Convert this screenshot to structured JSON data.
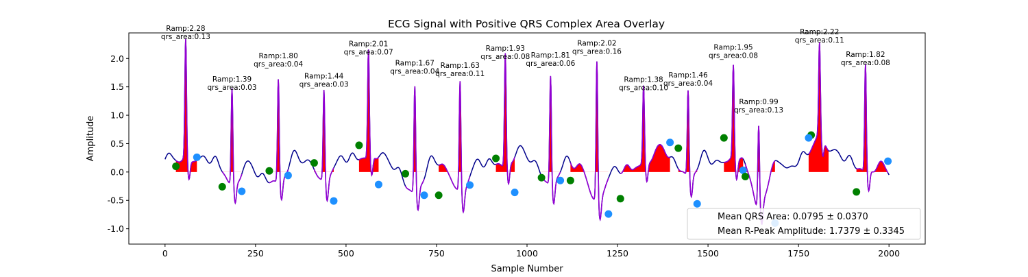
{
  "chart_data": {
    "type": "line",
    "title": "ECG Signal with Positive QRS Complex Area Overlay",
    "xlabel": "Sample Number",
    "ylabel": "Amplitude",
    "xlim": [
      -100,
      2100
    ],
    "ylim": [
      -1.27,
      2.45
    ],
    "x_ticks": [
      0,
      250,
      500,
      750,
      1000,
      1250,
      1500,
      1750,
      2000
    ],
    "y_ticks": [
      -1.0,
      -0.5,
      0.0,
      0.5,
      1.0,
      1.5,
      2.0
    ],
    "grid": false,
    "colors": {
      "signal": "#00008b",
      "qrs_signal": "#9400d3",
      "qrs_area": "#ff0000",
      "onset_marker": "#008000",
      "offset_marker": "#1e90ff"
    },
    "r_peaks": [
      {
        "x": 57,
        "amp": 2.28,
        "label1": "Ramp:2.28",
        "label2": "qrs_area:0.13",
        "onset": [
          30,
          0.1
        ],
        "offset": [
          88,
          0.26
        ]
      },
      {
        "x": 185,
        "amp": 1.39,
        "label1": "Ramp:1.39",
        "label2": "qrs_area:0.03",
        "onset": [
          158,
          -0.26
        ],
        "offset": [
          212,
          -0.34
        ]
      },
      {
        "x": 313,
        "amp": 1.8,
        "label1": "Ramp:1.80",
        "label2": "qrs_area:0.04",
        "onset": [
          288,
          0.02
        ],
        "offset": [
          340,
          -0.06
        ]
      },
      {
        "x": 439,
        "amp": 1.44,
        "label1": "Ramp:1.44",
        "label2": "qrs_area:0.03",
        "onset": [
          412,
          0.16
        ],
        "offset": [
          466,
          -0.51
        ]
      },
      {
        "x": 562,
        "amp": 2.01,
        "label1": "Ramp:2.01",
        "label2": "qrs_area:0.07",
        "onset": [
          536,
          0.47
        ],
        "offset": [
          590,
          -0.22
        ]
      },
      {
        "x": 690,
        "amp": 1.67,
        "label1": "Ramp:1.67",
        "label2": "qrs_area:0.04",
        "onset": [
          664,
          -0.03
        ],
        "offset": [
          716,
          -0.41
        ]
      },
      {
        "x": 815,
        "amp": 1.63,
        "label1": "Ramp:1.63",
        "label2": "qrs_area:0.11",
        "onset": [
          756,
          -0.41
        ],
        "offset": [
          842,
          -0.23
        ]
      },
      {
        "x": 940,
        "amp": 1.93,
        "label1": "Ramp:1.93",
        "label2": "qrs_area:0.08",
        "onset": [
          914,
          0.24
        ],
        "offset": [
          966,
          -0.36
        ]
      },
      {
        "x": 1065,
        "amp": 1.81,
        "label1": "Ramp:1.81",
        "label2": "qrs_area:0.06",
        "onset": [
          1040,
          -0.1
        ],
        "offset": [
          1092,
          -0.15
        ]
      },
      {
        "x": 1193,
        "amp": 2.02,
        "label1": "Ramp:2.02",
        "label2": "qrs_area:0.16",
        "onset": [
          1120,
          -0.15
        ],
        "offset": [
          1225,
          -0.74
        ]
      },
      {
        "x": 1322,
        "amp": 1.38,
        "label1": "Ramp:1.38",
        "label2": "qrs_area:0.10",
        "onset": [
          1258,
          -0.47
        ],
        "offset": [
          1395,
          0.52
        ]
      },
      {
        "x": 1445,
        "amp": 1.46,
        "label1": "Ramp:1.46",
        "label2": "qrs_area:0.04",
        "onset": [
          1418,
          0.42
        ],
        "offset": [
          1470,
          -0.56
        ]
      },
      {
        "x": 1570,
        "amp": 1.95,
        "label1": "Ramp:1.95",
        "label2": "qrs_area:0.08",
        "onset": [
          1544,
          0.6
        ],
        "offset": [
          1597,
          0.03
        ]
      },
      {
        "x": 1640,
        "amp": 0.99,
        "label1": "Ramp:0.99",
        "label2": "qrs_area:0.13",
        "onset": [
          1603,
          -0.08
        ],
        "offset": [
          1685,
          -0.9
        ]
      },
      {
        "x": 1808,
        "amp": 2.22,
        "label1": "Ramp:2.22",
        "label2": "qrs_area:0.11",
        "onset": [
          1785,
          0.65
        ],
        "offset": [
          1778,
          0.6
        ]
      },
      {
        "x": 1935,
        "amp": 1.82,
        "label1": "Ramp:1.82",
        "label2": "qrs_area:0.08",
        "onset": [
          1910,
          -0.35
        ],
        "offset": [
          1997,
          0.19
        ]
      }
    ],
    "legend": {
      "placement": "lower-right",
      "entries": [
        "Mean QRS Area: 0.0795 ± 0.0370",
        "Mean R-Peak Amplitude: 1.7379 ± 0.3345"
      ]
    }
  }
}
